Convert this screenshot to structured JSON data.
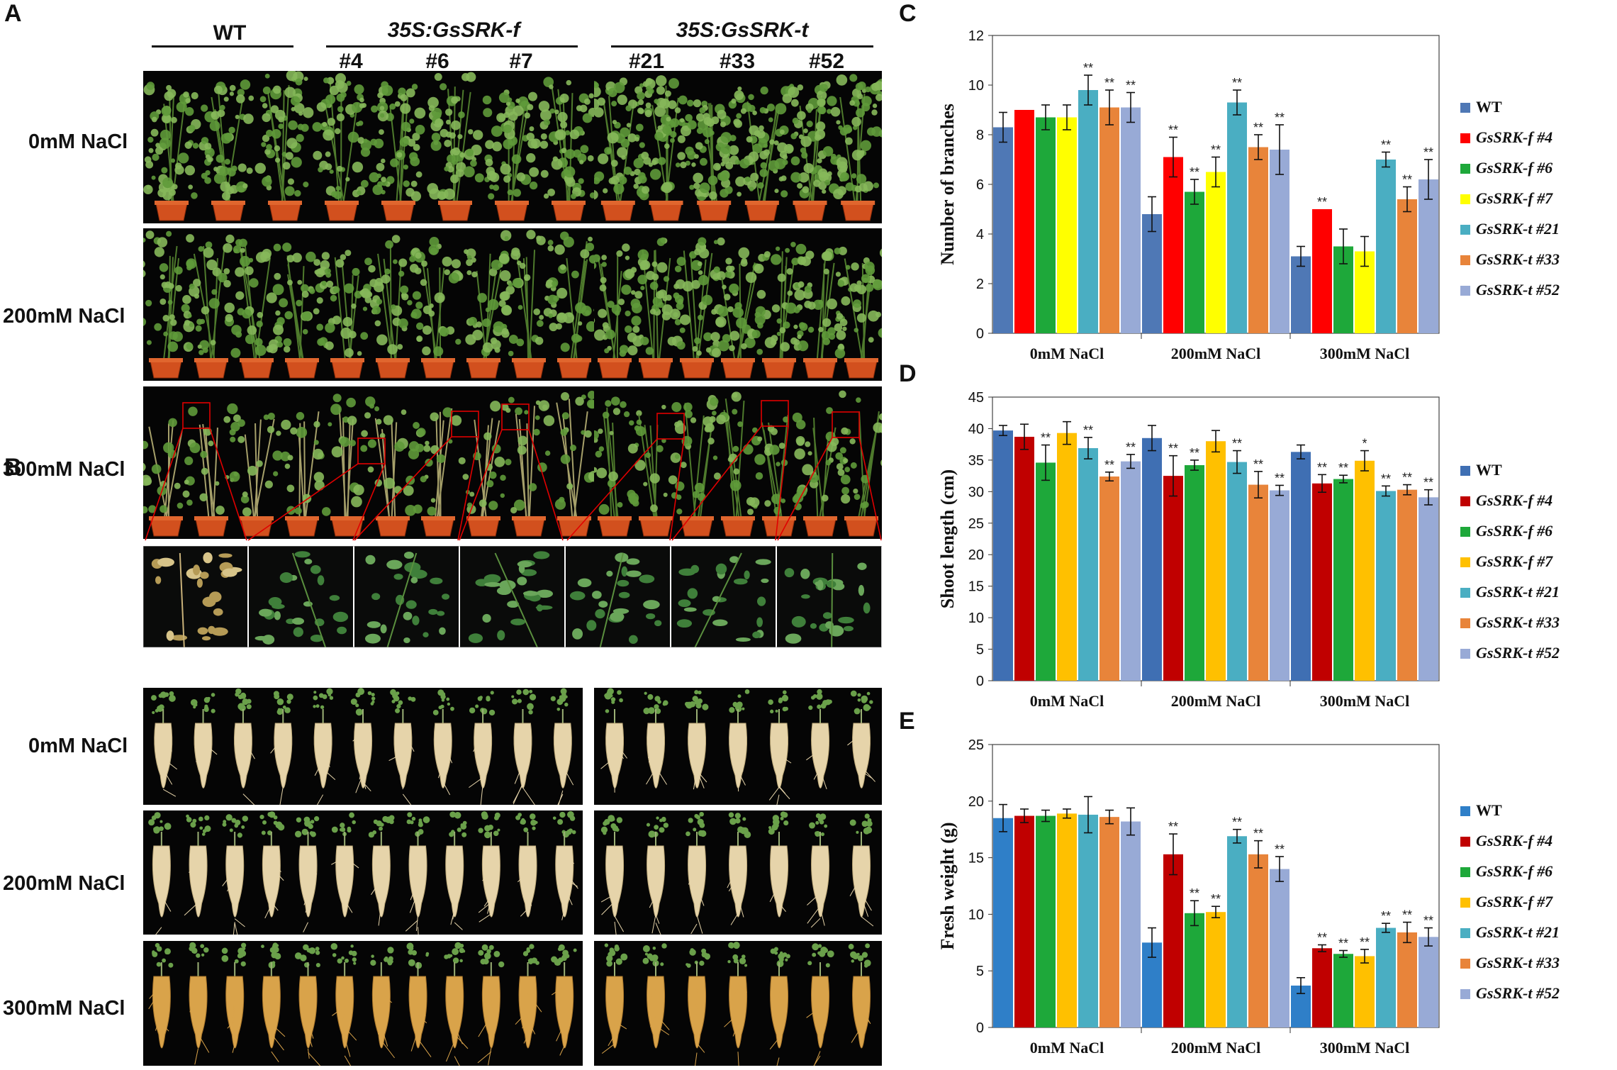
{
  "panels": {
    "A": "A",
    "B": "B",
    "C": "C",
    "D": "D",
    "E": "E"
  },
  "panel_a": {
    "group_wt": "WT",
    "group_f": "35S:GsSRK-f",
    "group_t": "35S:GsSRK-t",
    "lines_f": [
      "#4",
      "#6",
      "#7"
    ],
    "lines_t": [
      "#21",
      "#33",
      "#52"
    ],
    "rows": [
      "0mM NaCl",
      "200mM NaCl",
      "300mM NaCl"
    ]
  },
  "panel_b": {
    "rows": [
      "0mM NaCl",
      "200mM NaCl",
      "300mM NaCl"
    ]
  },
  "colors": {
    "WT": "#4f78b5",
    "f4": "#ff0000",
    "f6": "#1ea83a",
    "f7": "#ffff00",
    "t21": "#4aaec2",
    "t33": "#e8843a",
    "t52": "#98aad6"
  },
  "chart_data": [
    {
      "id": "C",
      "type": "bar",
      "title": "",
      "xlabel": "",
      "ylabel": "Number of branches",
      "ylim": [
        0,
        12
      ],
      "yticks": [
        "0",
        "2",
        "4",
        "6",
        "8",
        "10",
        "12"
      ],
      "categories": [
        "0mM NaCl",
        "200mM NaCl",
        "300mM NaCl"
      ],
      "series": [
        {
          "name": "WT",
          "color": "#4f78b5",
          "values": [
            8.3,
            4.8,
            3.1
          ],
          "err": [
            0.6,
            0.7,
            0.4
          ],
          "sig": [
            "",
            "",
            ""
          ]
        },
        {
          "name": "GsSRK-f #4",
          "color": "#ff0000",
          "values": [
            9.0,
            7.1,
            5.0
          ],
          "err": [
            0.0,
            0.8,
            0.0
          ],
          "sig": [
            "",
            "**",
            "**"
          ]
        },
        {
          "name": "GsSRK-f #6",
          "color": "#1ea83a",
          "values": [
            8.7,
            5.7,
            3.5
          ],
          "err": [
            0.5,
            0.5,
            0.7
          ],
          "sig": [
            "",
            "**",
            ""
          ]
        },
        {
          "name": "GsSRK-f #7",
          "color": "#ffff00",
          "values": [
            8.7,
            6.5,
            3.3
          ],
          "err": [
            0.5,
            0.6,
            0.6
          ],
          "sig": [
            "",
            "**",
            ""
          ]
        },
        {
          "name": "GsSRK-t #21",
          "color": "#4aaec2",
          "values": [
            9.8,
            9.3,
            7.0
          ],
          "err": [
            0.6,
            0.5,
            0.3
          ],
          "sig": [
            "**",
            "**",
            "**"
          ]
        },
        {
          "name": "GsSRK-t #33",
          "color": "#e8843a",
          "values": [
            9.1,
            7.5,
            5.4
          ],
          "err": [
            0.7,
            0.5,
            0.5
          ],
          "sig": [
            "**",
            "**",
            "**"
          ]
        },
        {
          "name": "GsSRK-t #52",
          "color": "#98aad6",
          "values": [
            9.1,
            7.4,
            6.2
          ],
          "err": [
            0.6,
            1.0,
            0.8
          ],
          "sig": [
            "**",
            "**",
            "**"
          ]
        }
      ]
    },
    {
      "id": "D",
      "type": "bar",
      "title": "",
      "xlabel": "",
      "ylabel": "Shoot  length (cm)",
      "ylim": [
        0,
        45
      ],
      "yticks": [
        "0",
        "5",
        "10",
        "15",
        "20",
        "25",
        "30",
        "35",
        "40",
        "45"
      ],
      "categories": [
        "0mM NaCl",
        "200mM NaCl",
        "300mM NaCl"
      ],
      "series": [
        {
          "name": "WT",
          "color": "#3f6fb3",
          "values": [
            39.7,
            38.5,
            36.3
          ],
          "err": [
            0.8,
            2.0,
            1.1
          ],
          "sig": [
            "",
            "",
            ""
          ]
        },
        {
          "name": "GsSRK-f #4",
          "color": "#c00000",
          "values": [
            38.7,
            32.5,
            31.3
          ],
          "err": [
            2.0,
            3.2,
            1.4
          ],
          "sig": [
            "",
            "**",
            "**"
          ]
        },
        {
          "name": "GsSRK-f #6",
          "color": "#1ea83a",
          "values": [
            34.6,
            34.2,
            32.0
          ],
          "err": [
            2.8,
            0.8,
            0.6
          ],
          "sig": [
            "**",
            "**",
            "**"
          ]
        },
        {
          "name": "GsSRK-f #7",
          "color": "#ffc000",
          "values": [
            39.3,
            38.0,
            34.9
          ],
          "err": [
            1.8,
            1.7,
            1.6
          ],
          "sig": [
            "",
            "",
            "*"
          ]
        },
        {
          "name": "GsSRK-t #21",
          "color": "#4aaec2",
          "values": [
            36.9,
            34.7,
            30.1
          ],
          "err": [
            1.7,
            1.8,
            0.8
          ],
          "sig": [
            "**",
            "**",
            "**"
          ]
        },
        {
          "name": "GsSRK-t #33",
          "color": "#e8843a",
          "values": [
            32.4,
            31.1,
            30.3
          ],
          "err": [
            0.7,
            2.1,
            0.8
          ],
          "sig": [
            "**",
            "**",
            "**"
          ]
        },
        {
          "name": "GsSRK-t #52",
          "color": "#98aad6",
          "values": [
            34.8,
            30.2,
            29.1
          ],
          "err": [
            1.1,
            0.8,
            1.2
          ],
          "sig": [
            "**",
            "**",
            "**"
          ]
        }
      ]
    },
    {
      "id": "E",
      "type": "bar",
      "title": "",
      "xlabel": "",
      "ylabel": "Fresh  weight (g)",
      "ylim": [
        0,
        25
      ],
      "yticks": [
        "0",
        "5",
        "10",
        "15",
        "20",
        "25"
      ],
      "categories": [
        "0mM NaCl",
        "200mM NaCl",
        "300mM NaCl"
      ],
      "series": [
        {
          "name": "WT",
          "color": "#2f7fc8",
          "values": [
            18.5,
            7.5,
            3.7
          ],
          "err": [
            1.2,
            1.3,
            0.7
          ],
          "sig": [
            "",
            "",
            ""
          ]
        },
        {
          "name": "GsSRK-f #4",
          "color": "#c00000",
          "values": [
            18.7,
            15.3,
            7.0
          ],
          "err": [
            0.6,
            1.8,
            0.3
          ],
          "sig": [
            "",
            "**",
            "**"
          ]
        },
        {
          "name": "GsSRK-f #6",
          "color": "#1ea83a",
          "values": [
            18.7,
            10.1,
            6.5
          ],
          "err": [
            0.5,
            1.1,
            0.3
          ],
          "sig": [
            "",
            "**",
            "**"
          ]
        },
        {
          "name": "GsSRK-f #7",
          "color": "#ffc000",
          "values": [
            18.9,
            10.2,
            6.3
          ],
          "err": [
            0.4,
            0.5,
            0.6
          ],
          "sig": [
            "",
            "**",
            "**"
          ]
        },
        {
          "name": "GsSRK-t #21",
          "color": "#4aaec2",
          "values": [
            18.8,
            16.9,
            8.8
          ],
          "err": [
            1.6,
            0.6,
            0.4
          ],
          "sig": [
            "",
            "**",
            "**"
          ]
        },
        {
          "name": "GsSRK-t #33",
          "color": "#e8843a",
          "values": [
            18.6,
            15.3,
            8.4
          ],
          "err": [
            0.6,
            1.2,
            0.9
          ],
          "sig": [
            "",
            "**",
            "**"
          ]
        },
        {
          "name": "GsSRK-t #52",
          "color": "#98aad6",
          "values": [
            18.2,
            14.0,
            8.0
          ],
          "err": [
            1.2,
            1.1,
            0.8
          ],
          "sig": [
            "",
            "**",
            "**"
          ]
        }
      ]
    }
  ]
}
